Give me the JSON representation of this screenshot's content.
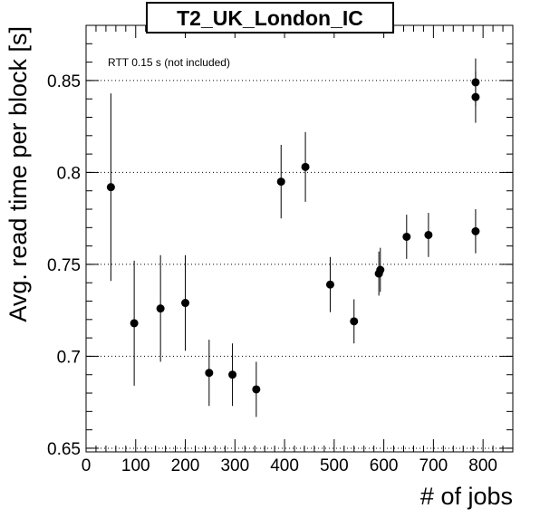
{
  "chart_data": {
    "type": "scatter",
    "title": "T2_UK_London_IC",
    "xlabel": "# of jobs",
    "ylabel": "Avg. read time per block [s]",
    "annotation": "RTT 0.15 s (not included)",
    "xlim": [
      0,
      860
    ],
    "ylim": [
      0.648,
      0.88
    ],
    "xticks": [
      0,
      100,
      200,
      300,
      400,
      500,
      600,
      700,
      800
    ],
    "xtick_labels": [
      "0",
      "100",
      "200",
      "300",
      "400",
      "500",
      "600",
      "700",
      "800"
    ],
    "yticks": [
      0.65,
      0.7,
      0.75,
      0.8,
      0.85
    ],
    "ytick_labels": [
      "0.65",
      "0.7",
      "0.75",
      "0.8",
      "0.85"
    ],
    "grid": "horizontal dotted at major y ticks",
    "legend": "none",
    "colors": {
      "points": "#000000",
      "title_box_border": "#000000",
      "grid": "#000000"
    },
    "points": [
      {
        "x": 50,
        "y": 0.792,
        "err": 0.051
      },
      {
        "x": 97,
        "y": 0.718,
        "err": 0.034
      },
      {
        "x": 150,
        "y": 0.726,
        "err": 0.029
      },
      {
        "x": 200,
        "y": 0.729,
        "err": 0.026
      },
      {
        "x": 248,
        "y": 0.691,
        "err": 0.018
      },
      {
        "x": 295,
        "y": 0.69,
        "err": 0.017
      },
      {
        "x": 343,
        "y": 0.682,
        "err": 0.015
      },
      {
        "x": 393,
        "y": 0.795,
        "err": 0.02
      },
      {
        "x": 442,
        "y": 0.803,
        "err": 0.019
      },
      {
        "x": 492,
        "y": 0.739,
        "err": 0.015
      },
      {
        "x": 540,
        "y": 0.719,
        "err": 0.012
      },
      {
        "x": 590,
        "y": 0.745,
        "err": 0.012
      },
      {
        "x": 593,
        "y": 0.747,
        "err": 0.012
      },
      {
        "x": 646,
        "y": 0.765,
        "err": 0.012
      },
      {
        "x": 690,
        "y": 0.766,
        "err": 0.012
      },
      {
        "x": 785,
        "y": 0.768,
        "err": 0.012
      },
      {
        "x": 785,
        "y": 0.841,
        "err": 0.014
      },
      {
        "x": 785,
        "y": 0.849,
        "err": 0.013
      }
    ]
  }
}
